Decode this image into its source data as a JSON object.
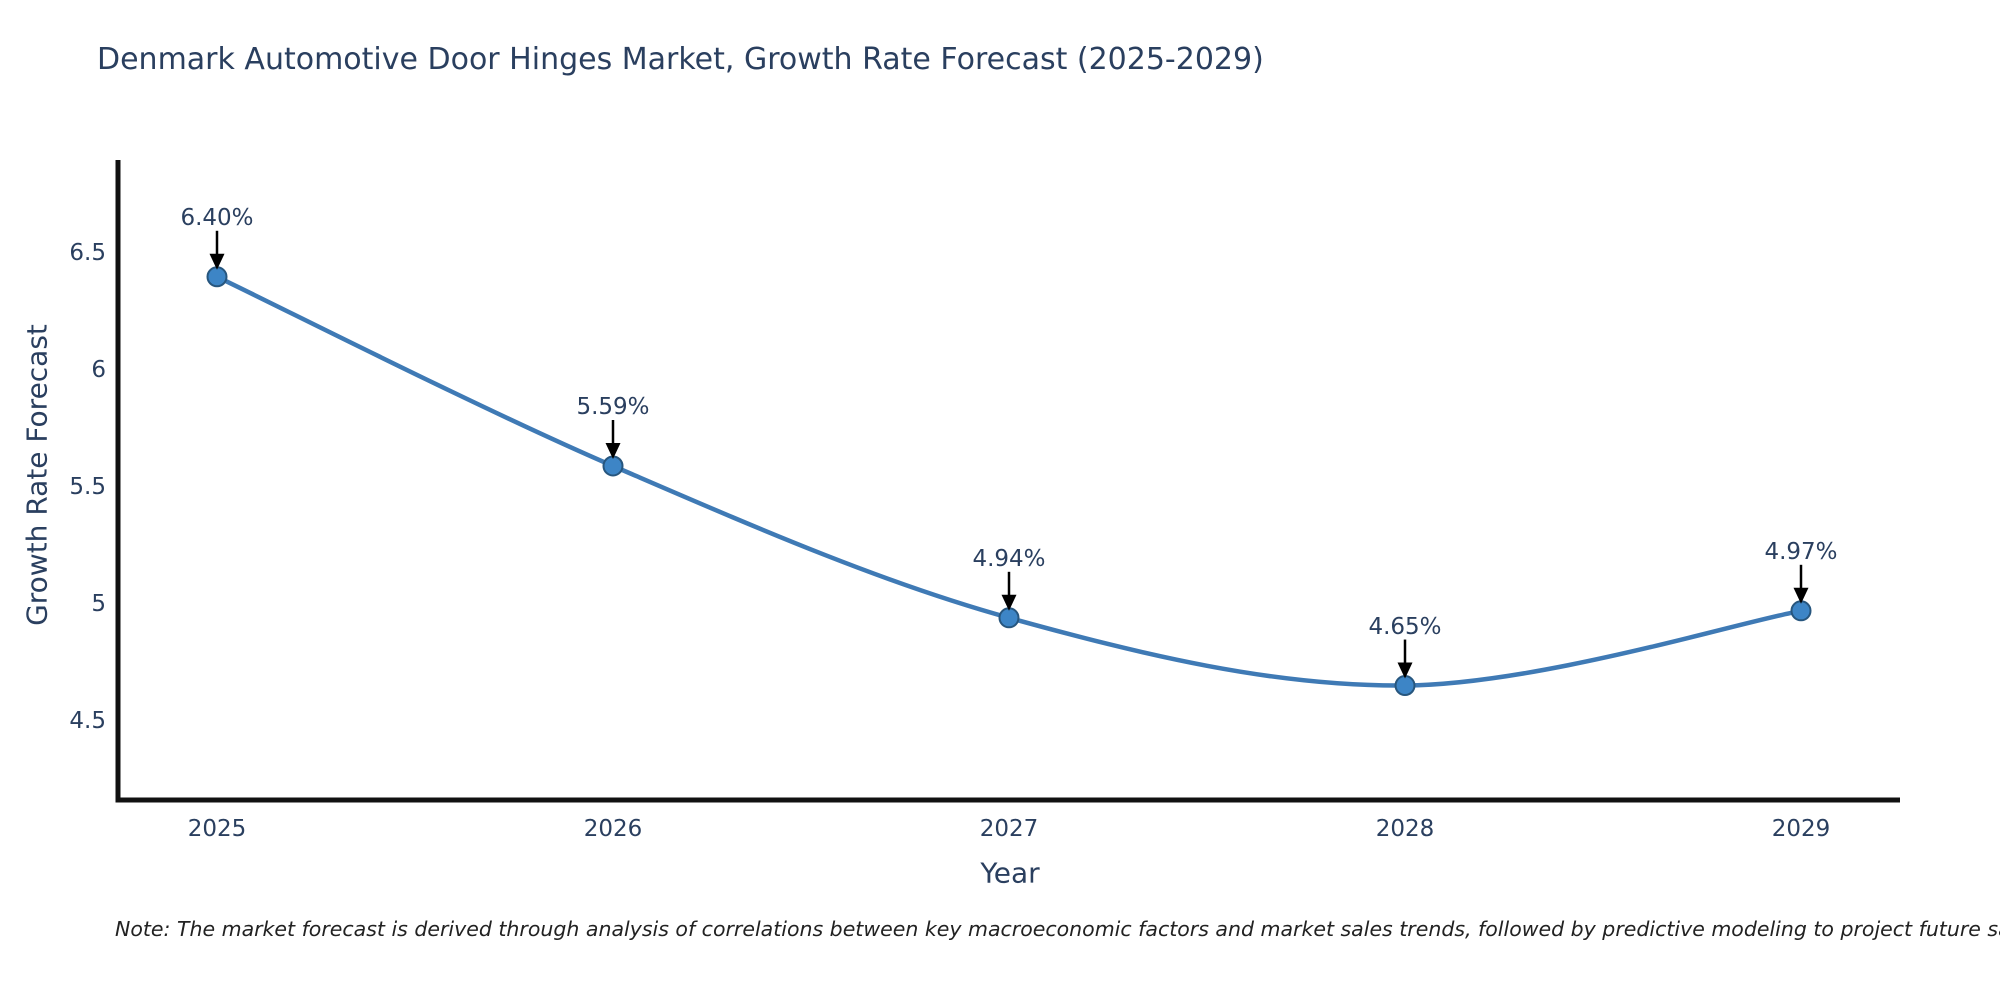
{
  "title": "Denmark Automotive Door Hinges Market, Growth Rate Forecast (2025-2029)",
  "note": "Note: The market forecast is derived through analysis of correlations between key macroeconomic factors and market sales trends, followed by predictive modeling to project future sales",
  "chart_data": {
    "type": "line",
    "title": "Denmark Automotive Door Hinges Market, Growth Rate Forecast (2025-2029)",
    "xlabel": "Year",
    "ylabel": "Growth Rate Forecast",
    "x": [
      2025,
      2026,
      2027,
      2028,
      2029
    ],
    "values": [
      6.4,
      5.59,
      4.94,
      4.65,
      4.97
    ],
    "point_labels": [
      "6.40%",
      "5.59%",
      "4.94%",
      "4.65%",
      "4.97%"
    ],
    "xticks": [
      2025,
      2026,
      2027,
      2028,
      2029
    ],
    "xtick_labels": [
      "2025",
      "2026",
      "2027",
      "2028",
      "2029"
    ],
    "yticks": [
      4.5,
      5,
      5.5,
      6,
      6.5
    ],
    "ytick_labels": [
      "4.5",
      "5",
      "5.5",
      "6",
      "6.5"
    ],
    "xlim": [
      2024.75,
      2029.25
    ],
    "ylim": [
      4.16,
      6.9
    ],
    "grid": false,
    "legend": "none",
    "line_shape": "spline",
    "annotation_style": "label-with-down-arrow"
  },
  "colors": {
    "line": "#3f7ab5",
    "marker_fill": "#3d85c6",
    "marker_stroke": "#27567e",
    "axis": "#111111",
    "text": "#2a3f5f",
    "arrow": "#000000",
    "note_text": "#222222",
    "background": "#ffffff"
  }
}
